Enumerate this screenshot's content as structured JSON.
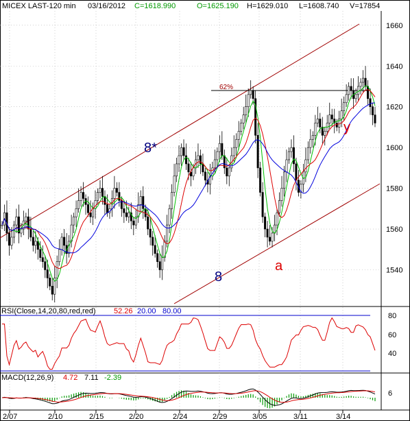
{
  "header": {
    "symbol": "MICEX LAST-120 min",
    "date": "03/16/2012",
    "close": "C=1618.990",
    "open": "O=1625.190",
    "high": "H=1629.010",
    "low": "L=1608.740",
    "volume": "V=17854"
  },
  "colors": {
    "up": "#000000",
    "grid": "#b0b0b0",
    "ma_fast": "#00c000",
    "ma_mid": "#dd0000",
    "ma_slow": "#0000dd",
    "channel": "#a00000",
    "rsi_line": "#dd0000",
    "rsi_levels": "#0000cc",
    "macd": "#000000",
    "signal": "#dd0000",
    "hist": "#009900",
    "annotation_blue": "#000080",
    "annotation_red": "#dd0000"
  },
  "annotations": {
    "fib_label": "62%",
    "wave_8star": "8*",
    "wave_8": "8",
    "wave_a": "a",
    "wave_y": "y"
  },
  "rsi_panel": {
    "label": "RSI(Close,14,20,80,red,red)",
    "value": "52.26",
    "lower": "20.00",
    "upper": "80.00",
    "ticks": [
      "80",
      "60",
      "40"
    ]
  },
  "macd_panel": {
    "label": "MACD(12,26,9)",
    "macd": "4.72",
    "signal": "7.11",
    "hist": "-2.39",
    "ticks": [
      "6"
    ]
  },
  "chart_data": {
    "type": "candlestick",
    "y_ticks": [
      1540,
      1560,
      1580,
      1600,
      1620,
      1640,
      1660
    ],
    "ylim": [
      1522,
      1667
    ],
    "x_ticks": [
      "2/07",
      "2/10",
      "2/15",
      "2/20",
      "2/24",
      "2/29",
      "3/05",
      "3/11",
      "3/14"
    ],
    "close_series": [
      1562,
      1568,
      1558,
      1552,
      1556,
      1562,
      1566,
      1558,
      1560,
      1564,
      1566,
      1560,
      1556,
      1552,
      1554,
      1550,
      1546,
      1544,
      1540,
      1536,
      1532,
      1528,
      1536,
      1544,
      1550,
      1556,
      1552,
      1548,
      1554,
      1562,
      1566,
      1570,
      1574,
      1578,
      1575,
      1572,
      1568,
      1566,
      1570,
      1574,
      1578,
      1580,
      1576,
      1572,
      1568,
      1570,
      1575,
      1580,
      1578,
      1574,
      1570,
      1568,
      1566,
      1568,
      1564,
      1562,
      1566,
      1572,
      1576,
      1570,
      1566,
      1560,
      1556,
      1552,
      1548,
      1544,
      1540,
      1546,
      1554,
      1562,
      1570,
      1578,
      1586,
      1592,
      1596,
      1600,
      1596,
      1592,
      1588,
      1586,
      1590,
      1594,
      1596,
      1592,
      1588,
      1584,
      1582,
      1586,
      1590,
      1594,
      1598,
      1602,
      1596,
      1590,
      1586,
      1590,
      1596,
      1600,
      1604,
      1608,
      1612,
      1616,
      1620,
      1626,
      1628,
      1624,
      1606,
      1590,
      1578,
      1566,
      1560,
      1556,
      1554,
      1558,
      1562,
      1568,
      1574,
      1580,
      1588,
      1594,
      1598,
      1600,
      1592,
      1584,
      1578,
      1582,
      1588,
      1594,
      1600,
      1604,
      1606,
      1612,
      1614,
      1610,
      1606,
      1608,
      1612,
      1616,
      1614,
      1612,
      1610,
      1614,
      1618,
      1622,
      1626,
      1630,
      1628,
      1624,
      1626,
      1630,
      1632,
      1634,
      1630,
      1624,
      1620,
      1616,
      1612
    ]
  }
}
